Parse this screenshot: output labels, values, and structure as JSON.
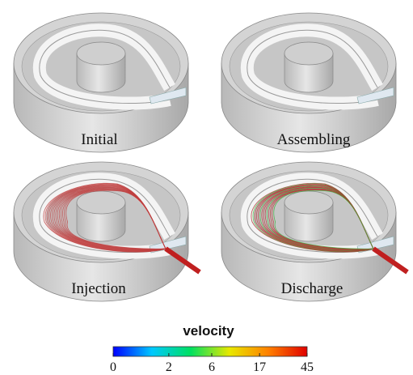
{
  "panels": [
    {
      "label": "Initial"
    },
    {
      "label": "Assembling"
    },
    {
      "label": "Injection"
    },
    {
      "label": "Discharge"
    }
  ],
  "colorbar": {
    "title": "velocity",
    "lim": [
      0,
      45
    ],
    "ticks": [
      0,
      2,
      6,
      17,
      45
    ],
    "scale": "log1p",
    "colors": [
      "#0000ff",
      "#00c8ff",
      "#00e060",
      "#e8e800",
      "#ff8000",
      "#e00000"
    ]
  }
}
